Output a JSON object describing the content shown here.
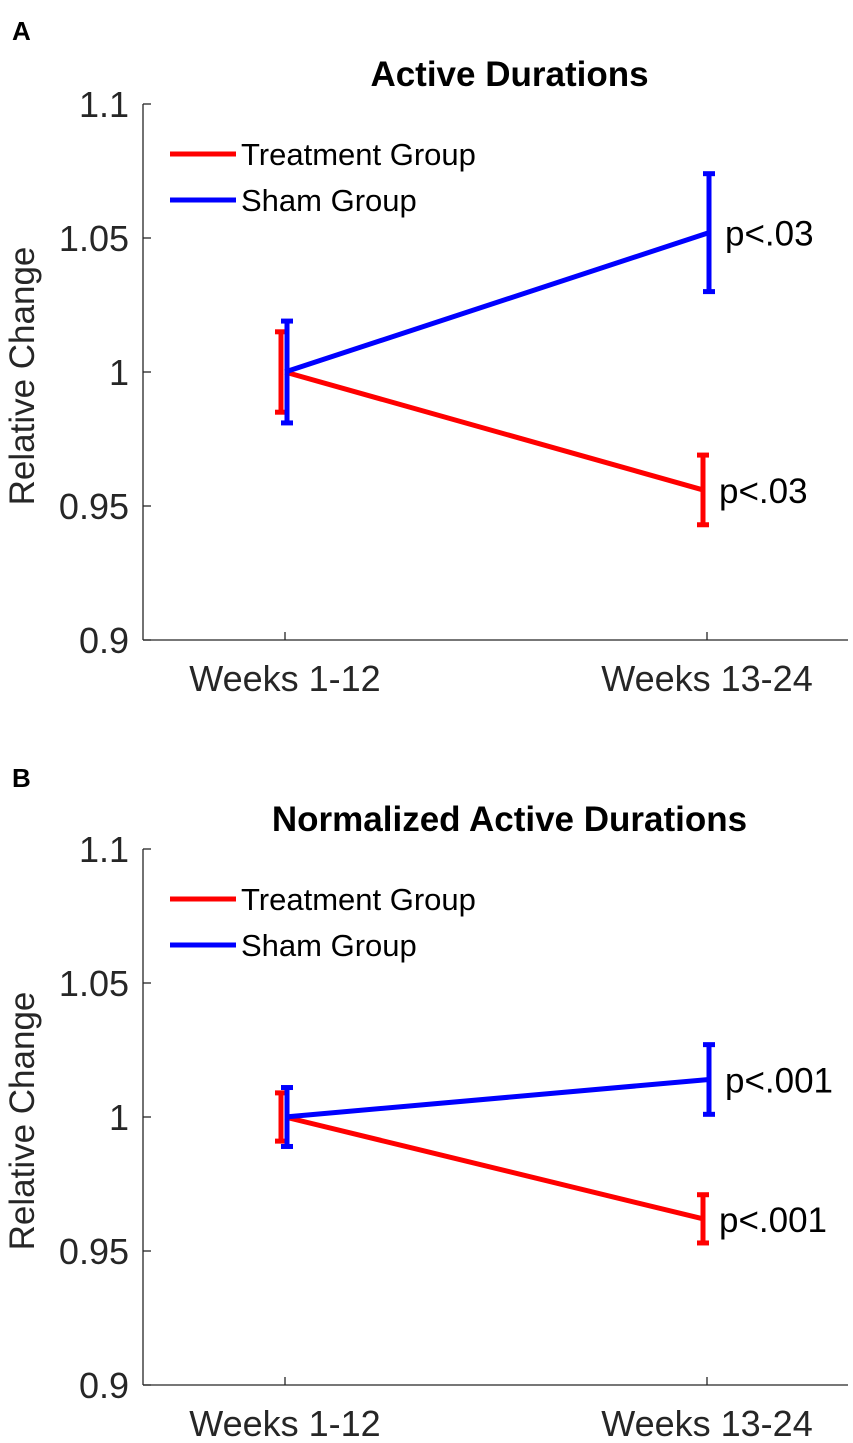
{
  "panels": [
    {
      "panel_label": "A",
      "chart_data": {
        "type": "line",
        "title": "Active Durations",
        "xlabel": "",
        "ylabel": "Relative Change",
        "categories": [
          "Weeks 1-12",
          "Weeks 13-24"
        ],
        "ylim": [
          0.9,
          1.1
        ],
        "yticks": [
          "0.9",
          "0.95",
          "1",
          "1.05",
          "1.1"
        ],
        "ytick_values": [
          0.9,
          0.95,
          1.0,
          1.05,
          1.1
        ],
        "grid": false,
        "legend_position": "top-left",
        "series": [
          {
            "name": "Treatment Group",
            "color": "#ff0000",
            "values": [
              1.0,
              0.956
            ],
            "errors": [
              0.015,
              0.013
            ],
            "annotations": [
              "",
              "p<.03"
            ]
          },
          {
            "name": "Sham Group",
            "color": "#0000ff",
            "values": [
              1.0,
              1.052
            ],
            "errors": [
              0.019,
              0.022
            ],
            "annotations": [
              "",
              "p<.03"
            ]
          }
        ]
      }
    },
    {
      "panel_label": "B",
      "chart_data": {
        "type": "line",
        "title": "Normalized Active Durations",
        "xlabel": "",
        "ylabel": "Relative Change",
        "categories": [
          "Weeks 1-12",
          "Weeks 13-24"
        ],
        "ylim": [
          0.9,
          1.1
        ],
        "yticks": [
          "0.9",
          "0.95",
          "1",
          "1.05",
          "1.1"
        ],
        "ytick_values": [
          0.9,
          0.95,
          1.0,
          1.05,
          1.1
        ],
        "grid": false,
        "legend_position": "top-left",
        "series": [
          {
            "name": "Treatment Group",
            "color": "#ff0000",
            "values": [
              1.0,
              0.962
            ],
            "errors": [
              0.009,
              0.009
            ],
            "annotations": [
              "",
              "p<.001"
            ]
          },
          {
            "name": "Sham Group",
            "color": "#0000ff",
            "values": [
              1.0,
              1.014
            ],
            "errors": [
              0.011,
              0.013
            ],
            "annotations": [
              "",
              "p<.001"
            ]
          }
        ]
      }
    }
  ]
}
